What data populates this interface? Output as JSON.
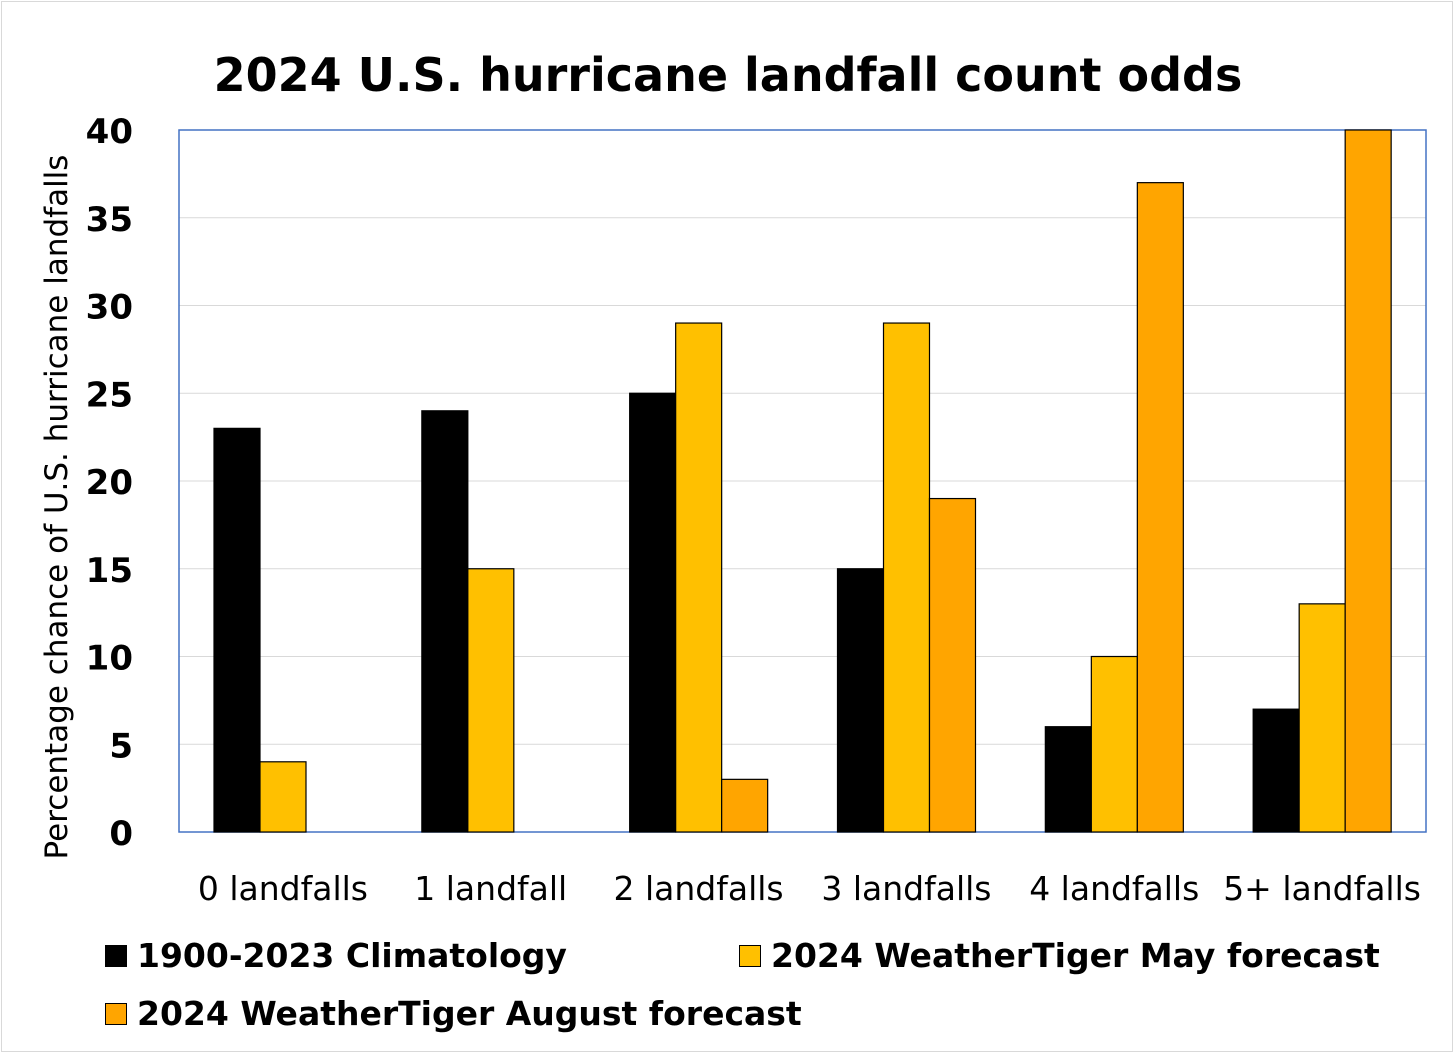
{
  "chart_data": {
    "type": "bar",
    "title": "2024 U.S. hurricane landfall count odds",
    "xlabel": "",
    "ylabel": "Percentage chance of U.S. hurricane landfalls",
    "ylim": [
      0,
      40
    ],
    "yticks": [
      "0",
      "5",
      "10",
      "15",
      "20",
      "25",
      "30",
      "35",
      "40"
    ],
    "grid": true,
    "legend_position": "bottom",
    "categories": [
      "0 landfalls",
      "1 landfall",
      "2 landfalls",
      "3 landfalls",
      "4 landfalls",
      "5+ landfalls"
    ],
    "series": [
      {
        "name": "1900-2023 Climatology",
        "color": "#000000",
        "values": [
          23,
          24,
          25,
          15,
          6,
          7
        ]
      },
      {
        "name": "2024 WeatherTiger May forecast",
        "color": "#FFC000",
        "values": [
          4,
          15,
          29,
          29,
          10,
          13
        ]
      },
      {
        "name": "2024 WeatherTiger August forecast",
        "color": "#FFA500",
        "values": [
          null,
          null,
          3,
          19,
          37,
          40
        ]
      }
    ]
  }
}
